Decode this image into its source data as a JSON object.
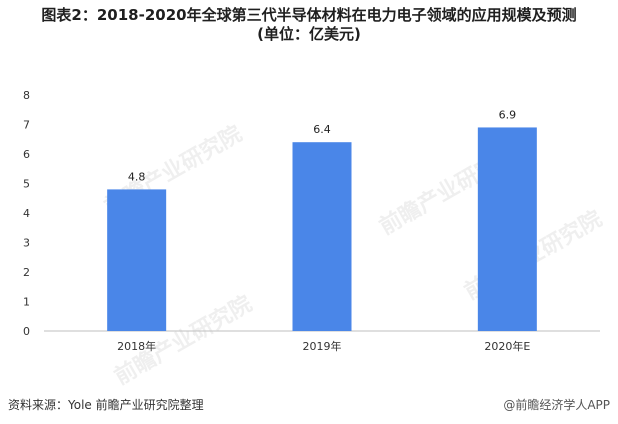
{
  "chart_data": {
    "type": "bar",
    "title": "图表2：2018-2020年全球第三代半导体材料在电力电子领域的应用规模及预测",
    "subtitle": "(单位：亿美元)",
    "categories": [
      "2018年",
      "2019年",
      "2020年E"
    ],
    "series": [
      {
        "values": [
          4.8,
          6.4,
          6.9
        ]
      }
    ],
    "data_labels": [
      "4.8",
      "6.4",
      "6.9"
    ],
    "ylim": [
      0,
      8
    ],
    "yticks": [
      "0",
      "1",
      "2",
      "3",
      "4",
      "5",
      "6",
      "7",
      "8"
    ],
    "grid": false,
    "legend": "none",
    "bar_color": "#4a86e8"
  },
  "footer": {
    "source": "资料来源：Yole 前瞻产业研究院整理",
    "brand": "@前瞻经济学人APP"
  },
  "watermark": {
    "text": "前瞻产业研究院"
  }
}
